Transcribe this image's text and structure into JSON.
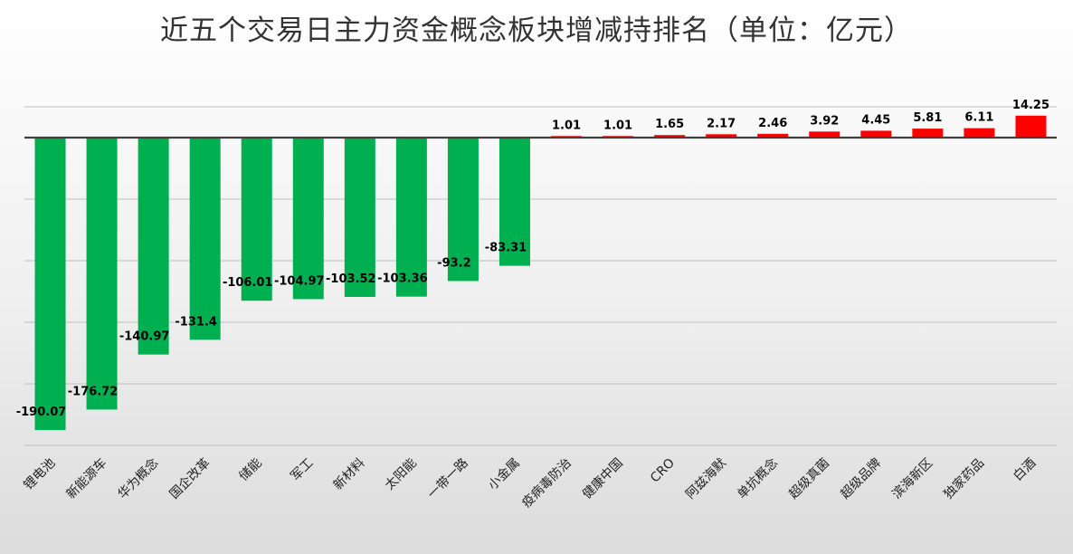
{
  "chart_data": {
    "type": "bar",
    "title": "近五个交易日主力资金概念板块增减持排名（单位：亿元）",
    "xlabel": "",
    "ylabel": "",
    "ylim": [
      -200,
      20
    ],
    "gridlines": [
      20,
      0,
      -40,
      -80,
      -120,
      -160,
      -200
    ],
    "grid": true,
    "legend": "none",
    "categories": [
      "锂电池",
      "新能源车",
      "华为概念",
      "国企改革",
      "储能",
      "军工",
      "新材料",
      "太阳能",
      "一带一路",
      "小金属",
      "疫病毒防治",
      "健康中国",
      "CRO",
      "阿兹海默",
      "单抗概念",
      "超级真菌",
      "超级品牌",
      "滨海新区",
      "独家药品",
      "白酒"
    ],
    "values": [
      -190.07,
      -176.72,
      -140.97,
      -131.4,
      -106.01,
      -104.97,
      -103.52,
      -103.36,
      -93.2,
      -83.31,
      1.01,
      1.01,
      1.65,
      2.17,
      2.46,
      3.92,
      4.45,
      5.81,
      6.11,
      14.25
    ],
    "value_labels": [
      "-190.07",
      "-176.72",
      "-140.97",
      "-131.4",
      "-106.01",
      "-104.97",
      "-103.52",
      "-103.36",
      "-93.2",
      "-83.31",
      "1.01",
      "1.01",
      "1.65",
      "2.17",
      "2.46",
      "3.92",
      "4.45",
      "5.81",
      "6.11",
      "14.25"
    ],
    "colors": {
      "negative": "#00b050",
      "positive": "#ff0000",
      "grid": "#bfbfbf",
      "axis": "#404040"
    }
  }
}
